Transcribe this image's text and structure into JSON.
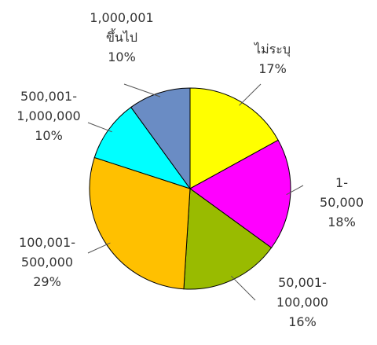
{
  "chart_data": {
    "type": "pie",
    "categories": [
      "ไม่ระบุ",
      "1-50,000",
      "50,001-\n100,000",
      "100,001-\n500,000",
      "500,001-\n1,000,000",
      "1,000,001\nขึ้นไป"
    ],
    "values": [
      17,
      18,
      16,
      29,
      10,
      10
    ],
    "value_labels": [
      "17%",
      "18%",
      "16%",
      "29%",
      "10%",
      "10%"
    ],
    "colors": [
      "#ffff00",
      "#ff00ff",
      "#99bb00",
      "#ffc000",
      "#00ffff",
      "#6a8cc4"
    ]
  }
}
